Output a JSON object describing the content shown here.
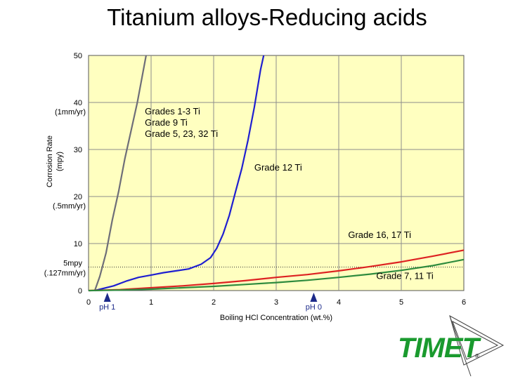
{
  "page": {
    "title": "Titanium alloys-Reducing acids"
  },
  "chart_data": {
    "type": "line",
    "title": "",
    "xlabel": "Boiling HCl Concentration (wt.%)",
    "ylabel": "Corrosion Rate (mpy)",
    "xlim": [
      0,
      6
    ],
    "ylim": [
      0,
      50
    ],
    "background": "#ffffc0",
    "x_ticks": [
      {
        "value": 0,
        "label": "0"
      },
      {
        "value": 1,
        "label": "1"
      },
      {
        "value": 2,
        "label": "2"
      },
      {
        "value": 3,
        "label": "3"
      },
      {
        "value": 4,
        "label": "4"
      },
      {
        "value": 5,
        "label": "5"
      },
      {
        "value": 6,
        "label": "6"
      }
    ],
    "y_ticks": [
      {
        "value": 0,
        "label": "0"
      },
      {
        "value": 10,
        "label": "10"
      },
      {
        "value": 20,
        "label": "20",
        "sub": "(.5mm/yr)"
      },
      {
        "value": 30,
        "label": "30"
      },
      {
        "value": 40,
        "label": "40",
        "sub": "(1mm/yr)"
      },
      {
        "value": 50,
        "label": "50"
      }
    ],
    "y_extra_label": {
      "value": 5,
      "label": "5mpy",
      "sub": "(.127mm/yr)"
    },
    "reference_line": {
      "y": 5,
      "style": "dotted"
    },
    "markers": [
      {
        "x": 0.3,
        "label": "pH 1"
      },
      {
        "x": 3.6,
        "label": "pH 0"
      }
    ],
    "series": [
      {
        "color": "#6e6e78",
        "x": [
          0.1,
          0.18,
          0.28,
          0.38,
          0.48,
          0.58,
          0.68,
          0.78,
          0.92
        ],
        "y": [
          0,
          3,
          8,
          15,
          21,
          28,
          34,
          40,
          50
        ]
      },
      {
        "color": "#1f1fd0",
        "x": [
          0.1,
          0.4,
          0.6,
          0.8,
          1.0,
          1.2,
          1.4,
          1.6,
          1.8,
          1.95,
          2.05,
          2.15,
          2.25,
          2.35,
          2.45,
          2.55,
          2.65,
          2.75,
          2.8
        ],
        "y": [
          0,
          1,
          2,
          2.8,
          3.3,
          3.8,
          4.2,
          4.6,
          5.6,
          7,
          9,
          12,
          16,
          21,
          26,
          32,
          39,
          47,
          50
        ]
      },
      {
        "color": "#dd2222",
        "x": [
          0,
          0.5,
          1,
          1.5,
          2,
          2.5,
          3,
          3.5,
          4,
          4.5,
          5,
          5.5,
          6
        ],
        "y": [
          0,
          0.2,
          0.6,
          1,
          1.5,
          2.1,
          2.8,
          3.4,
          4.2,
          5.1,
          6.1,
          7.3,
          8.6
        ]
      },
      {
        "color": "#2e8b3e",
        "x": [
          0,
          0.5,
          1,
          1.5,
          2,
          2.5,
          3,
          3.5,
          4,
          4.5,
          5,
          5.5,
          6
        ],
        "y": [
          0,
          0.1,
          0.3,
          0.6,
          0.9,
          1.3,
          1.7,
          2.2,
          2.8,
          3.5,
          4.3,
          5.3,
          6.6
        ]
      }
    ],
    "annotations": [
      {
        "lines": [
          "Grades 1-3 Ti",
          "Grade 9 Ti",
          "Grade 5, 23, 32 Ti"
        ],
        "x": 0.9,
        "y": 37.5
      },
      {
        "lines": [
          "Grade 12 Ti"
        ],
        "x": 2.65,
        "y": 25.5
      },
      {
        "lines": [
          "Grade 16, 17 Ti"
        ],
        "x": 4.15,
        "y": 11.2
      },
      {
        "lines": [
          "Grade 7, 11 Ti"
        ],
        "x": 4.6,
        "y": 2.5
      }
    ]
  },
  "logo": {
    "text": "TIMET",
    "mark": "®",
    "color": "#1a9a2e"
  }
}
